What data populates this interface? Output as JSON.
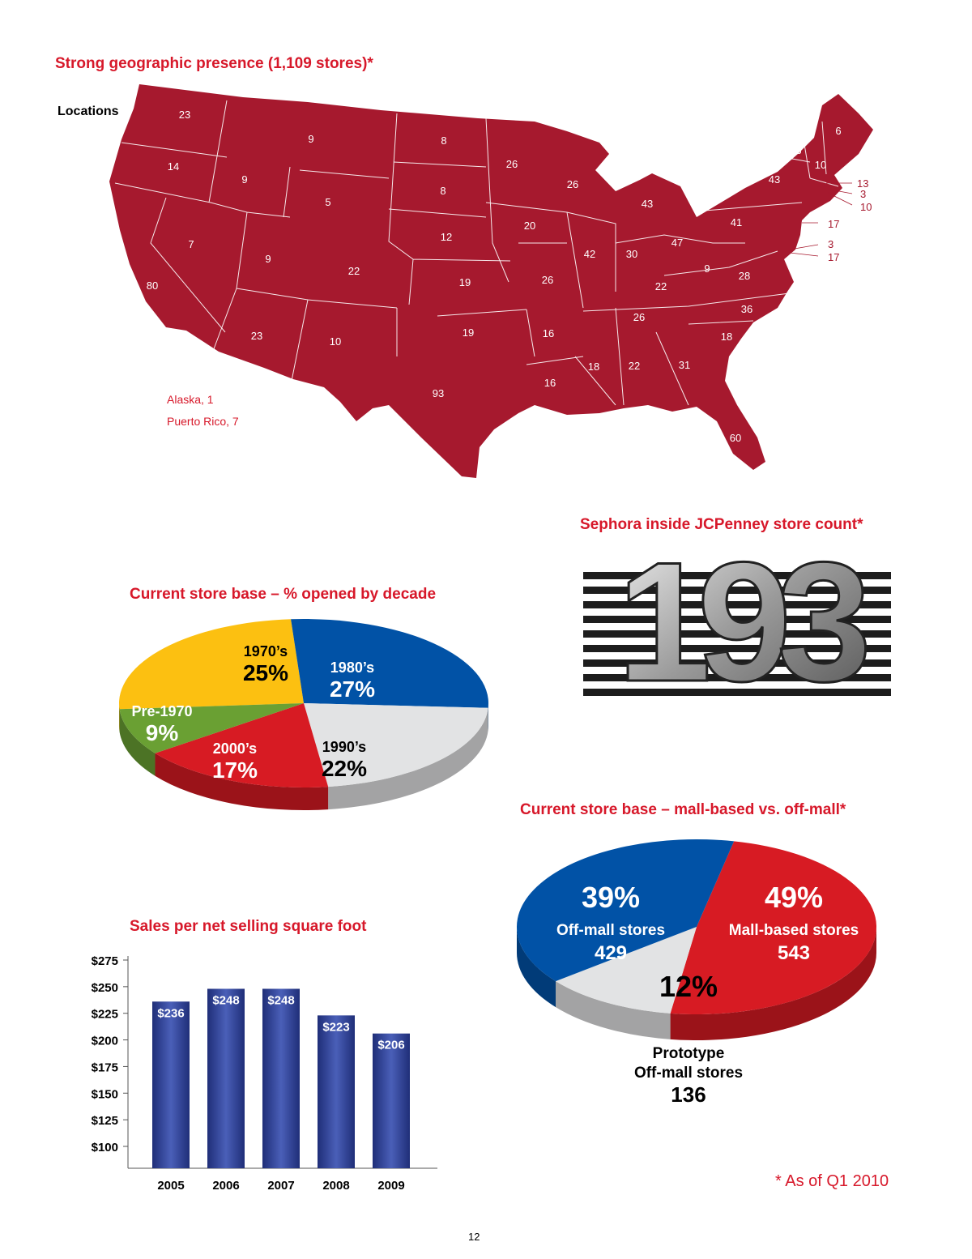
{
  "page": {
    "number": "12",
    "footnote": "* As of Q1 2010"
  },
  "map": {
    "title": "Strong geographic presence (1,109 stores)*",
    "locations_label": "Locations",
    "fill_color": "#a6192e",
    "extras": [
      {
        "label": "Alaska, 1"
      },
      {
        "label": "Puerto Rico, 7"
      }
    ],
    "states": [
      {
        "state": "WA",
        "count": "23"
      },
      {
        "state": "OR",
        "count": "14"
      },
      {
        "state": "CA",
        "count": "80"
      },
      {
        "state": "NV",
        "count": "7"
      },
      {
        "state": "ID",
        "count": "9"
      },
      {
        "state": "MT",
        "count": "9"
      },
      {
        "state": "WY",
        "count": "5"
      },
      {
        "state": "UT",
        "count": "9"
      },
      {
        "state": "AZ",
        "count": "23"
      },
      {
        "state": "CO",
        "count": "22"
      },
      {
        "state": "NM",
        "count": "10"
      },
      {
        "state": "ND",
        "count": "8"
      },
      {
        "state": "SD",
        "count": "8"
      },
      {
        "state": "NE",
        "count": "12"
      },
      {
        "state": "KS",
        "count": "19"
      },
      {
        "state": "OK",
        "count": "19"
      },
      {
        "state": "TX",
        "count": "93"
      },
      {
        "state": "MN",
        "count": "26"
      },
      {
        "state": "IA",
        "count": "20"
      },
      {
        "state": "MO",
        "count": "26"
      },
      {
        "state": "AR",
        "count": "16"
      },
      {
        "state": "LA",
        "count": "16"
      },
      {
        "state": "WI",
        "count": "26"
      },
      {
        "state": "IL",
        "count": "42"
      },
      {
        "state": "MI",
        "count": "43"
      },
      {
        "state": "IN",
        "count": "30"
      },
      {
        "state": "OH",
        "count": "47"
      },
      {
        "state": "KY",
        "count": "22"
      },
      {
        "state": "TN",
        "count": "26"
      },
      {
        "state": "MS",
        "count": "18"
      },
      {
        "state": "AL",
        "count": "22"
      },
      {
        "state": "GA",
        "count": "31"
      },
      {
        "state": "FL",
        "count": "60"
      },
      {
        "state": "SC",
        "count": "18"
      },
      {
        "state": "NC",
        "count": "36"
      },
      {
        "state": "VA",
        "count": "28"
      },
      {
        "state": "WV",
        "count": "9"
      },
      {
        "state": "PA",
        "count": "41"
      },
      {
        "state": "NY",
        "count": "43"
      },
      {
        "state": "VT",
        "count": "6"
      },
      {
        "state": "NH",
        "count": "10"
      },
      {
        "state": "ME",
        "count": "6"
      },
      {
        "state": "MA",
        "count": "13"
      },
      {
        "state": "RI",
        "count": "3"
      },
      {
        "state": "CT",
        "count": "10"
      },
      {
        "state": "NJ",
        "count": "17"
      },
      {
        "state": "DE",
        "count": "3"
      },
      {
        "state": "MD",
        "count": "17"
      }
    ]
  },
  "sephora": {
    "title": "Sephora inside JCPenney store count*",
    "count": "193"
  },
  "chart_data": [
    {
      "type": "pie",
      "title": "Current store base – % opened by decade",
      "slices": [
        {
          "label": "1970’s",
          "value": 25,
          "display": "25%",
          "color": "#fcc011"
        },
        {
          "label": "1980’s",
          "value": 27,
          "display": "27%",
          "color": "#0152a6"
        },
        {
          "label": "1990’s",
          "value": 22,
          "display": "22%",
          "color": "#e2e3e4"
        },
        {
          "label": "2000’s",
          "value": 17,
          "display": "17%",
          "color": "#d71b23"
        },
        {
          "label": "Pre-1970",
          "value": 9,
          "display": "9%",
          "color": "#6aa033"
        }
      ]
    },
    {
      "type": "pie",
      "title": "Current store base – mall-based vs. off-mall*",
      "slices": [
        {
          "label": "Mall-based stores",
          "value": 49,
          "display": "49%",
          "count": "543",
          "color": "#d71b23"
        },
        {
          "label": "Prototype Off-mall stores",
          "label_lines": [
            "Prototype",
            "Off-mall stores"
          ],
          "value": 12,
          "display": "12%",
          "count": "136",
          "color": "#e2e3e4"
        },
        {
          "label": "Off-mall stores",
          "value": 39,
          "display": "39%",
          "count": "429",
          "color": "#0152a6"
        }
      ]
    },
    {
      "type": "bar",
      "title": "Sales per net selling square foot",
      "categories": [
        "2005",
        "2006",
        "2007",
        "2008",
        "2009"
      ],
      "values": [
        236,
        248,
        248,
        223,
        206
      ],
      "value_labels": [
        "$236",
        "$248",
        "$248",
        "$223",
        "$206"
      ],
      "ylim": [
        100,
        275
      ],
      "yticks": [
        "$100",
        "$125",
        "$150",
        "$175",
        "$200",
        "$225",
        "$250",
        "$275"
      ],
      "ytick_values": [
        100,
        125,
        150,
        175,
        200,
        225,
        250,
        275
      ],
      "bar_color": "#2d3f94",
      "grid": false
    }
  ]
}
